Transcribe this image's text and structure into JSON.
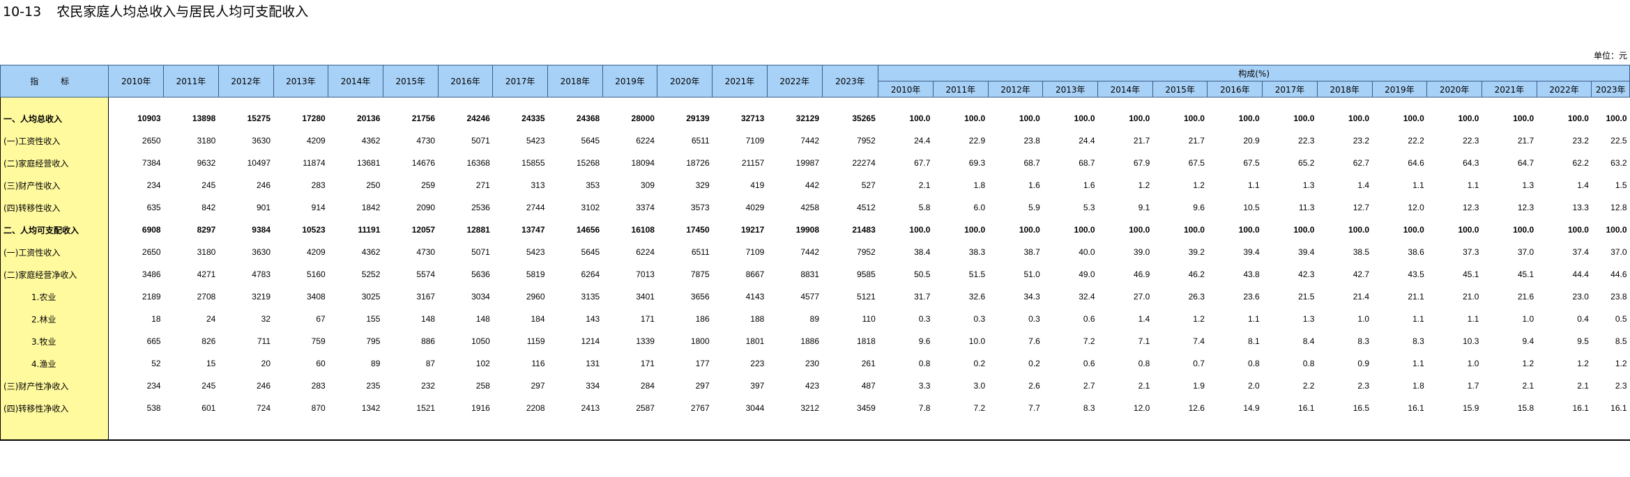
{
  "title": {
    "number": "10-13",
    "text": "农民家庭人均总收入与居民人均可支配收入"
  },
  "unit": "单位：元",
  "header": {
    "stub": "指  标",
    "years": [
      "2010年",
      "2011年",
      "2012年",
      "2013年",
      "2014年",
      "2015年",
      "2016年",
      "2017年",
      "2018年",
      "2019年",
      "2020年",
      "2021年",
      "2022年",
      "2023年"
    ],
    "composition_label": "构成(%)",
    "composition_years": [
      "2010年",
      "2011年",
      "2012年",
      "2013年",
      "2014年",
      "2015年",
      "2016年",
      "2017年",
      "2018年",
      "2019年",
      "2020年",
      "2021年",
      "2022年",
      "2023年"
    ]
  },
  "rows": [
    {
      "label": "一、人均总收入",
      "bold": true,
      "indent": 0,
      "values": [
        "10903",
        "13898",
        "15275",
        "17280",
        "20136",
        "21756",
        "24246",
        "24335",
        "24368",
        "28000",
        "29139",
        "32713",
        "32129",
        "35265"
      ],
      "pct": [
        "100.0",
        "100.0",
        "100.0",
        "100.0",
        "100.0",
        "100.0",
        "100.0",
        "100.0",
        "100.0",
        "100.0",
        "100.0",
        "100.0",
        "100.0",
        "100.0"
      ]
    },
    {
      "label": "(一)工资性收入",
      "bold": false,
      "indent": 1,
      "values": [
        "2650",
        "3180",
        "3630",
        "4209",
        "4362",
        "4730",
        "5071",
        "5423",
        "5645",
        "6224",
        "6511",
        "7109",
        "7442",
        "7952"
      ],
      "pct": [
        "24.4",
        "22.9",
        "23.8",
        "24.4",
        "21.7",
        "21.7",
        "20.9",
        "22.3",
        "23.2",
        "22.2",
        "22.3",
        "21.7",
        "23.2",
        "22.5"
      ]
    },
    {
      "label": "(二)家庭经营收入",
      "bold": false,
      "indent": 1,
      "values": [
        "7384",
        "9632",
        "10497",
        "11874",
        "13681",
        "14676",
        "16368",
        "15855",
        "15268",
        "18094",
        "18726",
        "21157",
        "19987",
        "22274"
      ],
      "pct": [
        "67.7",
        "69.3",
        "68.7",
        "68.7",
        "67.9",
        "67.5",
        "67.5",
        "65.2",
        "62.7",
        "64.6",
        "64.3",
        "64.7",
        "62.2",
        "63.2"
      ]
    },
    {
      "label": "(三)财产性收入",
      "bold": false,
      "indent": 1,
      "values": [
        "234",
        "245",
        "246",
        "283",
        "250",
        "259",
        "271",
        "313",
        "353",
        "309",
        "329",
        "419",
        "442",
        "527"
      ],
      "pct": [
        "2.1",
        "1.8",
        "1.6",
        "1.6",
        "1.2",
        "1.2",
        "1.1",
        "1.3",
        "1.4",
        "1.1",
        "1.1",
        "1.3",
        "1.4",
        "1.5"
      ]
    },
    {
      "label": "(四)转移性收入",
      "bold": false,
      "indent": 1,
      "values": [
        "635",
        "842",
        "901",
        "914",
        "1842",
        "2090",
        "2536",
        "2744",
        "3102",
        "3374",
        "3573",
        "4029",
        "4258",
        "4512"
      ],
      "pct": [
        "5.8",
        "6.0",
        "5.9",
        "5.3",
        "9.1",
        "9.6",
        "10.5",
        "11.3",
        "12.7",
        "12.0",
        "12.3",
        "12.3",
        "13.3",
        "12.8"
      ]
    },
    {
      "label": "二、人均可支配收入",
      "bold": true,
      "indent": 0,
      "values": [
        "6908",
        "8297",
        "9384",
        "10523",
        "11191",
        "12057",
        "12881",
        "13747",
        "14656",
        "16108",
        "17450",
        "19217",
        "19908",
        "21483"
      ],
      "pct": [
        "100.0",
        "100.0",
        "100.0",
        "100.0",
        "100.0",
        "100.0",
        "100.0",
        "100.0",
        "100.0",
        "100.0",
        "100.0",
        "100.0",
        "100.0",
        "100.0"
      ]
    },
    {
      "label": "(一)工资性收入",
      "bold": false,
      "indent": 1,
      "values": [
        "2650",
        "3180",
        "3630",
        "4209",
        "4362",
        "4730",
        "5071",
        "5423",
        "5645",
        "6224",
        "6511",
        "7109",
        "7442",
        "7952"
      ],
      "pct": [
        "38.4",
        "38.3",
        "38.7",
        "40.0",
        "39.0",
        "39.2",
        "39.4",
        "39.4",
        "38.5",
        "38.6",
        "37.3",
        "37.0",
        "37.4",
        "37.0"
      ]
    },
    {
      "label": "(二)家庭经营净收入",
      "bold": false,
      "indent": 1,
      "values": [
        "3486",
        "4271",
        "4783",
        "5160",
        "5252",
        "5574",
        "5636",
        "5819",
        "6264",
        "7013",
        "7875",
        "8667",
        "8831",
        "9585"
      ],
      "pct": [
        "50.5",
        "51.5",
        "51.0",
        "49.0",
        "46.9",
        "46.2",
        "43.8",
        "42.3",
        "42.7",
        "43.5",
        "45.1",
        "45.1",
        "44.4",
        "44.6"
      ]
    },
    {
      "label": "1.农业",
      "bold": false,
      "indent": 2,
      "values": [
        "2189",
        "2708",
        "3219",
        "3408",
        "3025",
        "3167",
        "3034",
        "2960",
        "3135",
        "3401",
        "3656",
        "4143",
        "4577",
        "5121"
      ],
      "pct": [
        "31.7",
        "32.6",
        "34.3",
        "32.4",
        "27.0",
        "26.3",
        "23.6",
        "21.5",
        "21.4",
        "21.1",
        "21.0",
        "21.6",
        "23.0",
        "23.8"
      ]
    },
    {
      "label": "2.林业",
      "bold": false,
      "indent": 2,
      "values": [
        "18",
        "24",
        "32",
        "67",
        "155",
        "148",
        "148",
        "184",
        "143",
        "171",
        "186",
        "188",
        "89",
        "110"
      ],
      "pct": [
        "0.3",
        "0.3",
        "0.3",
        "0.6",
        "1.4",
        "1.2",
        "1.1",
        "1.3",
        "1.0",
        "1.1",
        "1.1",
        "1.0",
        "0.4",
        "0.5"
      ]
    },
    {
      "label": "3.牧业",
      "bold": false,
      "indent": 2,
      "values": [
        "665",
        "826",
        "711",
        "759",
        "795",
        "886",
        "1050",
        "1159",
        "1214",
        "1339",
        "1800",
        "1801",
        "1886",
        "1818"
      ],
      "pct": [
        "9.6",
        "10.0",
        "7.6",
        "7.2",
        "7.1",
        "7.4",
        "8.1",
        "8.4",
        "8.3",
        "8.3",
        "10.3",
        "9.4",
        "9.5",
        "8.5"
      ]
    },
    {
      "label": "4.渔业",
      "bold": false,
      "indent": 2,
      "values": [
        "52",
        "15",
        "20",
        "60",
        "89",
        "87",
        "102",
        "116",
        "131",
        "171",
        "177",
        "223",
        "230",
        "261"
      ],
      "pct": [
        "0.8",
        "0.2",
        "0.2",
        "0.6",
        "0.8",
        "0.7",
        "0.8",
        "0.8",
        "0.9",
        "1.1",
        "1.0",
        "1.2",
        "1.2",
        "1.2"
      ]
    },
    {
      "label": "(三)财产性净收入",
      "bold": false,
      "indent": 1,
      "values": [
        "234",
        "245",
        "246",
        "283",
        "235",
        "232",
        "258",
        "297",
        "334",
        "284",
        "297",
        "397",
        "423",
        "487"
      ],
      "pct": [
        "3.3",
        "3.0",
        "2.6",
        "2.7",
        "2.1",
        "1.9",
        "2.0",
        "2.2",
        "2.3",
        "1.8",
        "1.7",
        "2.1",
        "2.1",
        "2.3"
      ]
    },
    {
      "label": "(四)转移性净收入",
      "bold": false,
      "indent": 1,
      "values": [
        "538",
        "601",
        "724",
        "870",
        "1342",
        "1521",
        "1916",
        "2208",
        "2413",
        "2587",
        "2767",
        "3044",
        "3212",
        "3459"
      ],
      "pct": [
        "7.8",
        "7.2",
        "7.7",
        "8.3",
        "12.0",
        "12.6",
        "14.9",
        "16.1",
        "16.5",
        "16.1",
        "15.9",
        "15.8",
        "16.1",
        "16.1"
      ]
    }
  ]
}
